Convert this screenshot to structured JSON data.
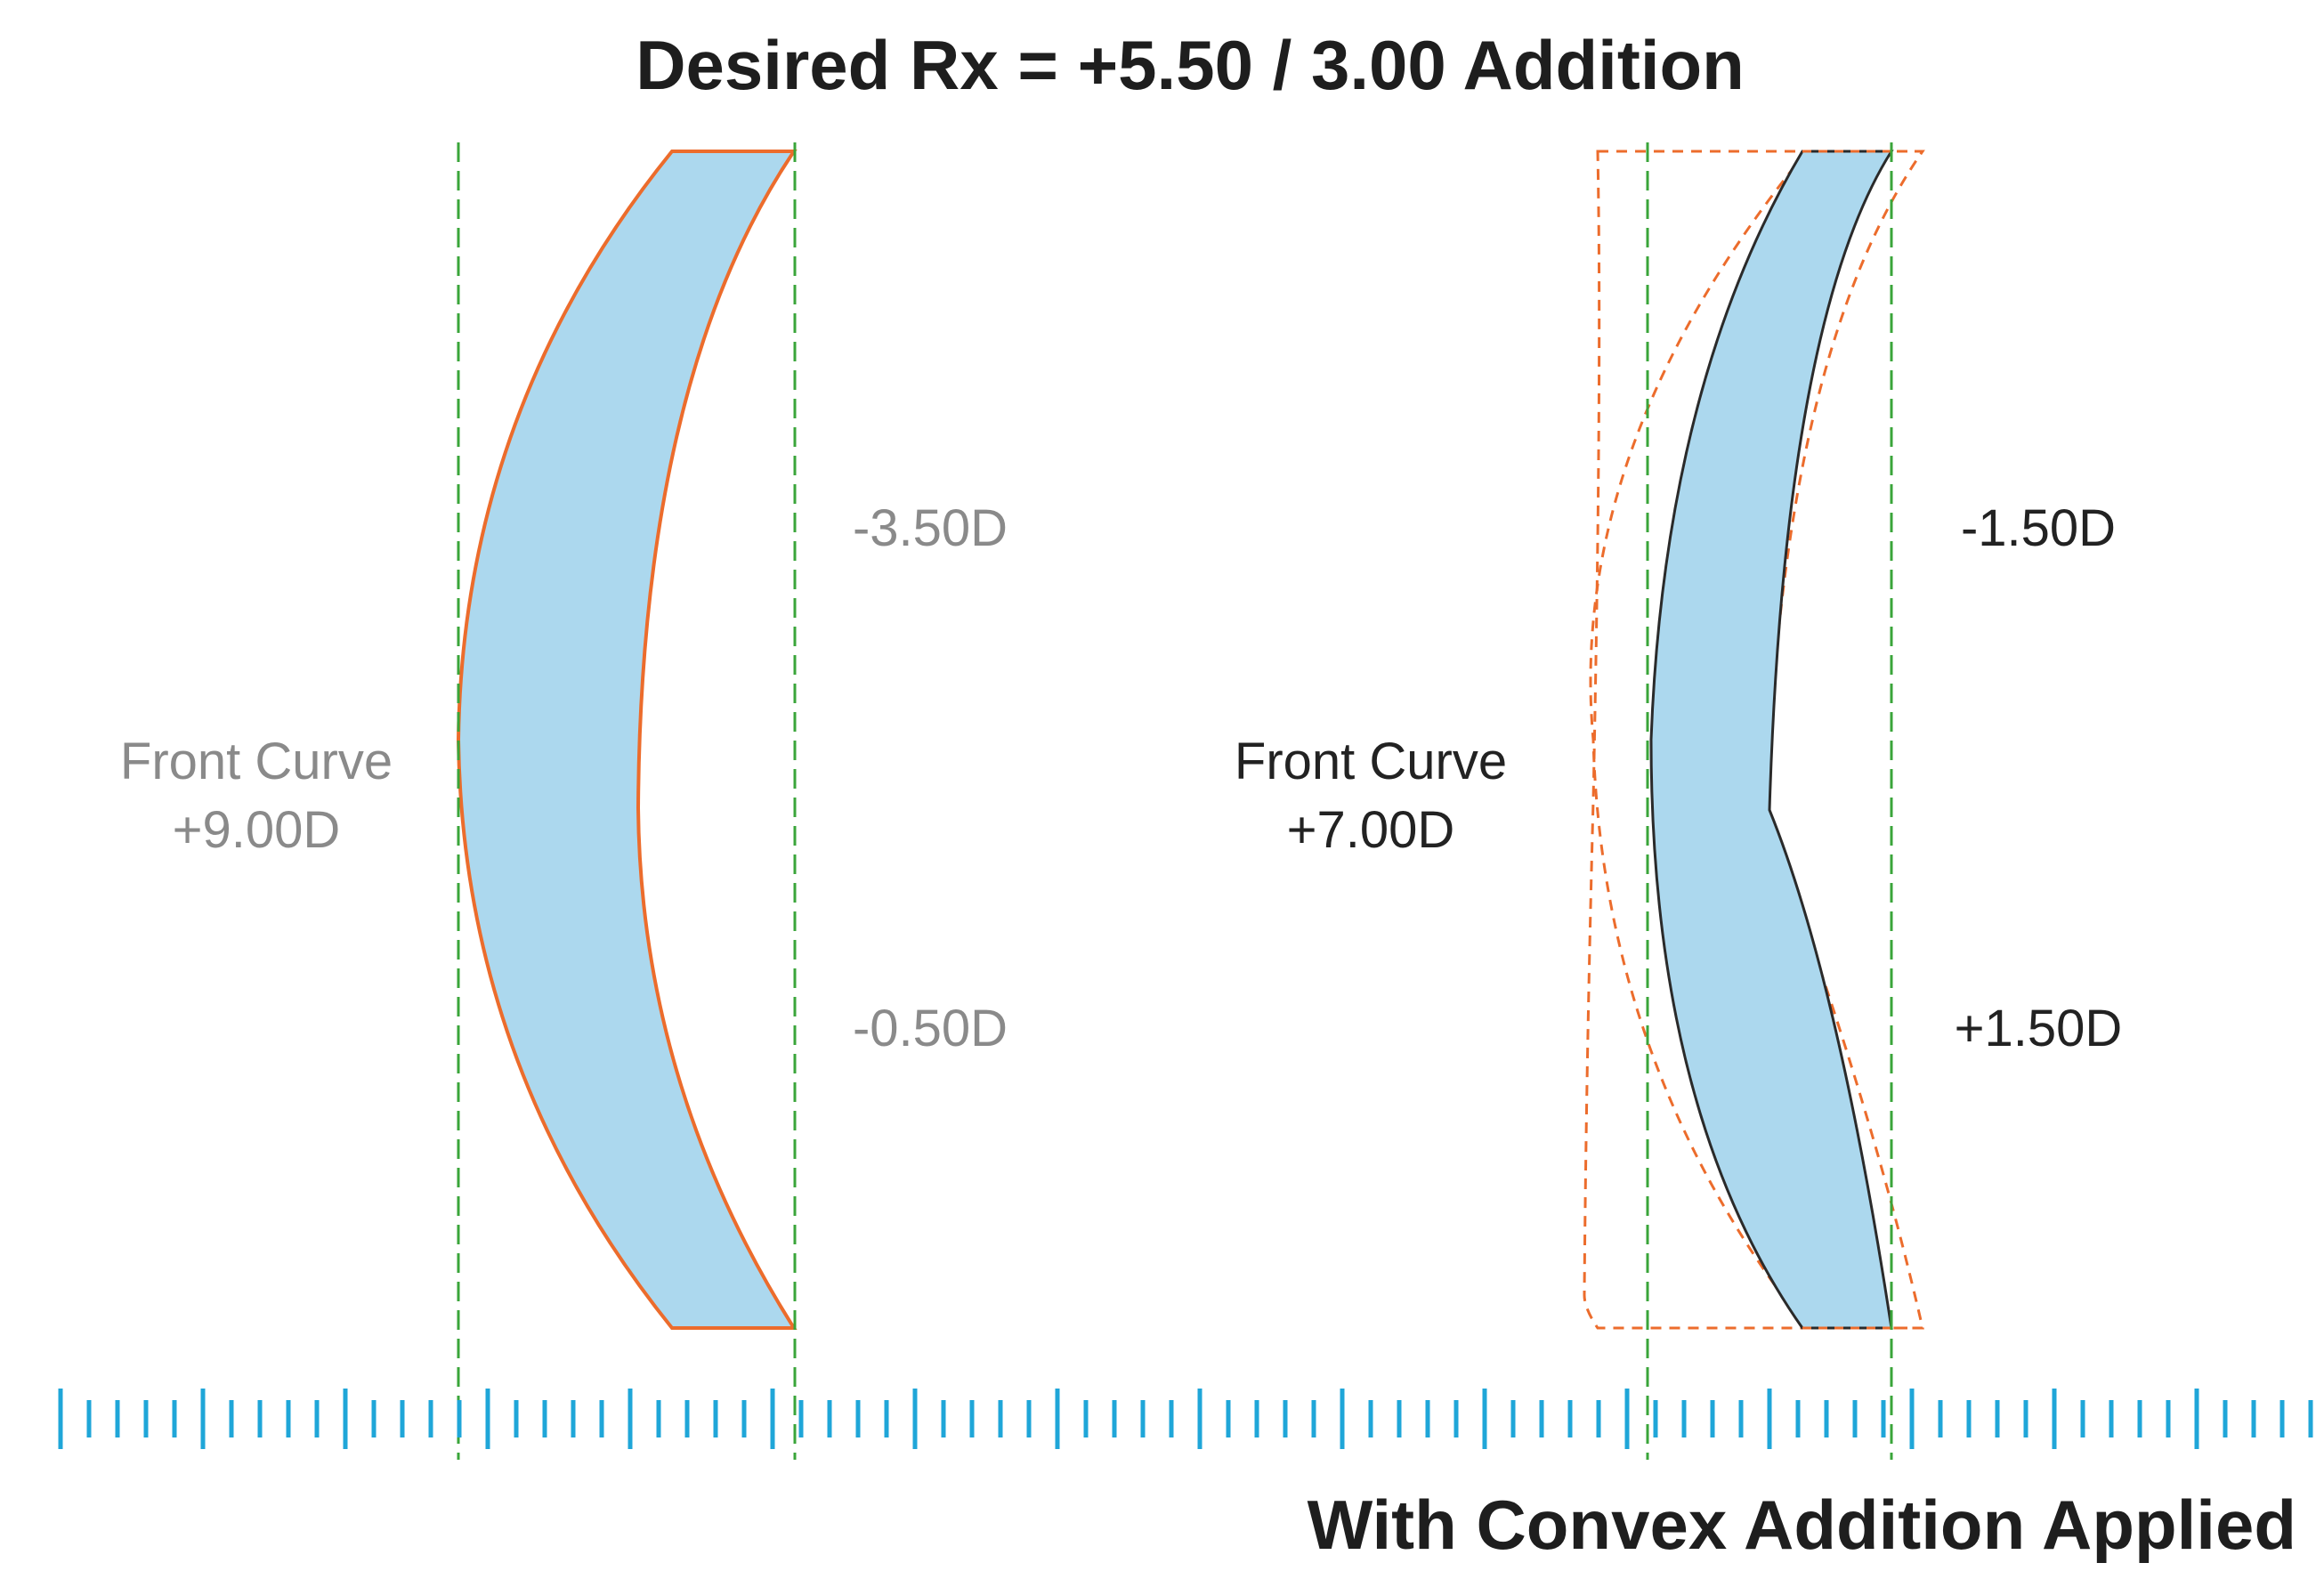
{
  "title": "Desired Rx = +5.50 / 3.00 Addition",
  "caption": "With Convex Addition Applied",
  "left_lens": {
    "front_curve_line1": "Front Curve",
    "front_curve_line2": "+9.00D",
    "back_upper": "-3.50D",
    "back_lower": "-0.50D"
  },
  "right_lens": {
    "front_curve_line1": "Front Curve",
    "front_curve_line2": "+7.00D",
    "back_upper": "-1.50D",
    "back_lower": "+1.50D"
  },
  "colors": {
    "lens_fill": "#acd8ee",
    "left_outline": "#ec6c2c",
    "right_outline": "#2a2a2a",
    "ghost_outline": "#ec6c2c",
    "guide_line": "#3aa53a",
    "ruler": "#1fa6d8",
    "text_dark": "#222222",
    "text_light": "#8a8a8a"
  }
}
